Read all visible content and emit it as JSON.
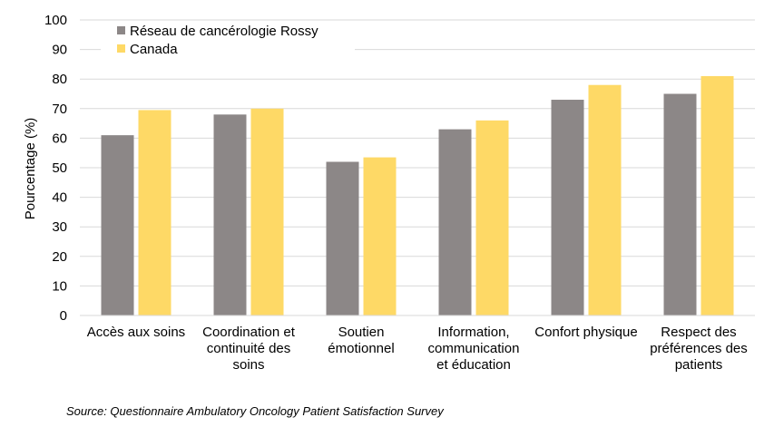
{
  "chart_data": {
    "type": "bar",
    "categories": [
      [
        "Accès aux soins"
      ],
      [
        "Coordination et",
        "continuité des",
        "soins"
      ],
      [
        "Soutien",
        "émotionnel"
      ],
      [
        "Information,",
        "communication",
        "et éducation"
      ],
      [
        "Confort physique"
      ],
      [
        "Respect des",
        "préférences des",
        "patients"
      ]
    ],
    "series": [
      {
        "name": "Réseau de cancérologie Rossy",
        "values": [
          61,
          68,
          52,
          63,
          73,
          75
        ],
        "color": "#8c8787"
      },
      {
        "name": "Canada",
        "values": [
          69.5,
          70,
          53.5,
          66,
          78,
          81
        ],
        "color": "#fed966"
      }
    ],
    "ylabel": "Pourcentage (%)",
    "ylim": [
      0,
      100
    ],
    "yticks": [
      0,
      10,
      20,
      30,
      40,
      50,
      60,
      70,
      80,
      90,
      100
    ],
    "grid": true,
    "legend": "top-left",
    "gridline_color": "#d9d9d9"
  },
  "source_note": "Source: Questionnaire Ambulatory Oncology Patient Satisfaction Survey"
}
